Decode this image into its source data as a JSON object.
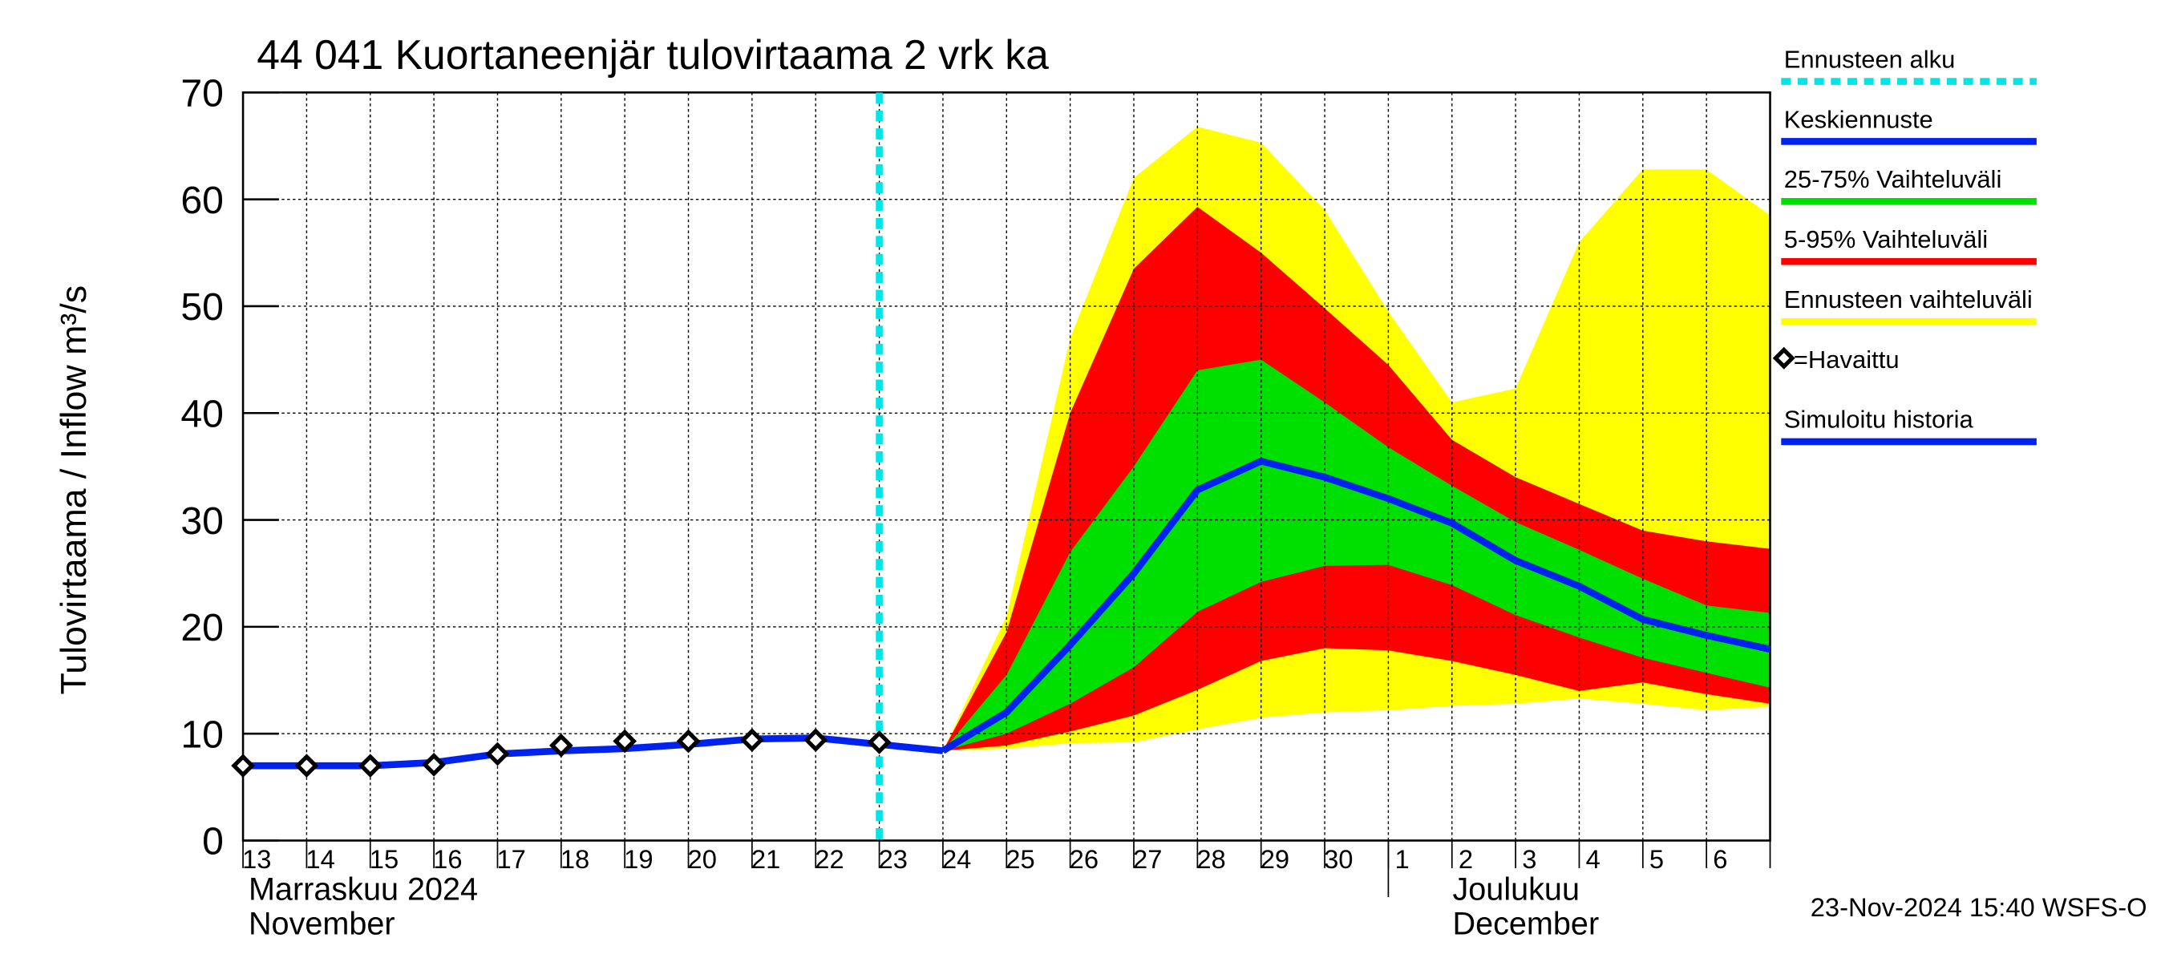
{
  "chart_data": {
    "type": "forecast-band",
    "title": "44 041 Kuortaneenjär tulovirtaama 2 vrk ka",
    "y_label": "Tulovirtaama / Inflow    m³/s",
    "month_labels": [
      "Marraskuu 2024",
      "November",
      "Joulukuu",
      "December"
    ],
    "footer": "23-Nov-2024 15:40 WSFS-O",
    "categories": [
      "13",
      "14",
      "15",
      "16",
      "17",
      "18",
      "19",
      "20",
      "21",
      "22",
      "23",
      "24",
      "25",
      "26",
      "27",
      "28",
      "29",
      "30",
      "1",
      "2",
      "3",
      "4",
      "5",
      "6",
      null
    ],
    "ylim": [
      0,
      70
    ],
    "yticks": [
      0,
      10,
      20,
      30,
      40,
      50,
      60,
      70
    ],
    "grid": true,
    "forecast_start": {
      "name": "Ennusteen alku",
      "color": "#00e5e5",
      "index": 10
    },
    "bands": [
      {
        "name": "Ennusteen vaihteluväli",
        "color": "#ffff00",
        "upper": [
          null,
          null,
          null,
          null,
          null,
          null,
          null,
          null,
          null,
          null,
          null,
          8.4,
          21,
          47,
          62,
          66.8,
          65.3,
          59,
          49.5,
          41,
          42.3,
          56,
          62.8,
          62.8,
          58.5
        ],
        "lower": [
          null,
          null,
          null,
          null,
          null,
          null,
          null,
          null,
          null,
          null,
          null,
          8.4,
          8.6,
          9.1,
          9.2,
          10.4,
          11.5,
          12,
          12.2,
          12.6,
          12.8,
          13.3,
          12.8,
          12.2,
          12.5
        ]
      },
      {
        "name": "5-95% Vaihteluväli",
        "color": "#ff0000",
        "upper": [
          null,
          null,
          null,
          null,
          null,
          null,
          null,
          null,
          null,
          null,
          null,
          8.4,
          19.5,
          40,
          53.5,
          59.3,
          55,
          49.8,
          44.5,
          37.5,
          34,
          31.5,
          29,
          28,
          27.3
        ],
        "lower": [
          null,
          null,
          null,
          null,
          null,
          null,
          null,
          null,
          null,
          null,
          null,
          8.4,
          8.9,
          10.2,
          11.7,
          14.1,
          16.8,
          18,
          17.8,
          16.8,
          15.5,
          14,
          14.8,
          13.7,
          12.8
        ]
      },
      {
        "name": "25-75% Vaihteluväli",
        "color": "#00e000",
        "upper": [
          null,
          null,
          null,
          null,
          null,
          null,
          null,
          null,
          null,
          null,
          null,
          8.4,
          15.5,
          27,
          35,
          44,
          45,
          41,
          36.8,
          33.2,
          29.8,
          27.2,
          24.5,
          22,
          21.3
        ],
        "lower": [
          null,
          null,
          null,
          null,
          null,
          null,
          null,
          null,
          null,
          null,
          null,
          8.4,
          10,
          12.8,
          16.2,
          21.4,
          24.2,
          25.7,
          25.8,
          23.9,
          21.1,
          19,
          17.1,
          15.7,
          14.3
        ]
      }
    ],
    "series": [
      {
        "name": "Simuloitu historia",
        "color": "#0022ee",
        "values": [
          7.0,
          7.0,
          7.0,
          7.3,
          8.1,
          8.4,
          8.6,
          9.0,
          9.5,
          9.6,
          9.0,
          8.4,
          null,
          null,
          null,
          null,
          null,
          null,
          null,
          null,
          null,
          null,
          null,
          null,
          null
        ]
      },
      {
        "name": "Keskiennuste",
        "color": "#0022ee",
        "values": [
          null,
          null,
          null,
          null,
          null,
          null,
          null,
          null,
          null,
          null,
          null,
          8.4,
          12,
          18.3,
          25,
          32.8,
          35.5,
          34,
          32,
          29.7,
          26.2,
          23.8,
          20.7,
          19.2,
          17.9
        ]
      },
      {
        "name": "=Havaittu",
        "color": "#000000",
        "marker": "diamond",
        "values": [
          7.0,
          7.0,
          7.0,
          7.1,
          8.1,
          8.9,
          9.3,
          9.3,
          9.4,
          9.4,
          9.2,
          null,
          null,
          null,
          null,
          null,
          null,
          null,
          null,
          null,
          null,
          null,
          null,
          null,
          null
        ]
      }
    ],
    "legend_order": [
      "forecast_start",
      "series.1",
      "bands.2",
      "bands.1",
      "bands.0",
      "series.2",
      "series.0"
    ]
  }
}
